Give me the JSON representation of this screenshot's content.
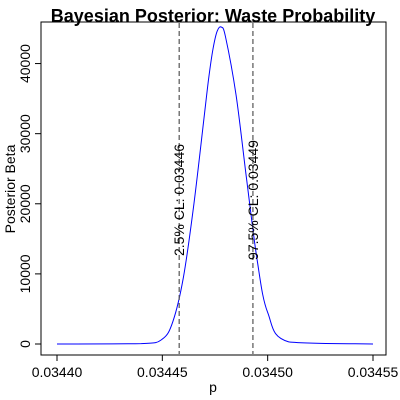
{
  "chart_data": {
    "type": "line",
    "title": "Bayesian Posterior: Waste Probability",
    "xlabel": "p",
    "ylabel": "Posterior Beta",
    "xlim": [
      0.0344,
      0.03455
    ],
    "ylim": [
      0,
      45500
    ],
    "x_ticks": [
      0.0344,
      0.03445,
      0.0345,
      0.03455
    ],
    "x_tick_labels": [
      "0.03440",
      "0.03445",
      "0.03450",
      "0.03455"
    ],
    "y_ticks": [
      0,
      10000,
      20000,
      30000,
      40000
    ],
    "y_tick_labels": [
      "0",
      "10000",
      "20000",
      "30000",
      "40000"
    ],
    "series": [
      {
        "color": "#0000ff",
        "x": [
          0.0344,
          0.03444,
          0.03445,
          0.034455,
          0.03446,
          0.034465,
          0.03447,
          0.034472,
          0.034474,
          0.034476,
          0.034478,
          0.03448,
          0.034485,
          0.03449,
          0.034495,
          0.0345,
          0.03451,
          0.03455
        ],
        "y": [
          0,
          50,
          700,
          3200,
          9500,
          20000,
          32800,
          37900,
          42000,
          44600,
          45200,
          43800,
          35500,
          23500,
          12000,
          4500,
          300,
          0
        ]
      }
    ],
    "vlines": [
      {
        "x": 0.034458,
        "color": "#555555",
        "style": "dashed",
        "label": "2.5% CL: 0.03446"
      },
      {
        "x": 0.034493,
        "color": "#555555",
        "style": "dashed",
        "label": "97.5% CL: 0.03449"
      }
    ],
    "grid": false,
    "legend": "none"
  }
}
